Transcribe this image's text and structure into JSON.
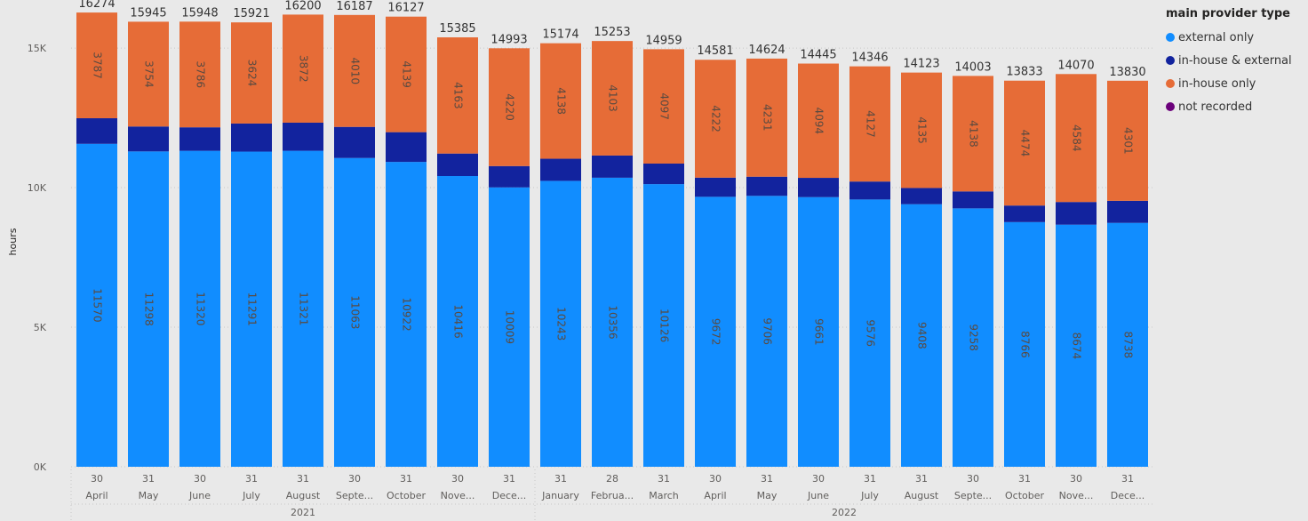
{
  "colors": {
    "background": "#e9e9e9",
    "external_only": "#118dff",
    "in_house_and_external": "#12239e",
    "in_house_only": "#e66c37",
    "not_recorded": "#6b007b",
    "gridline": "#c8c8c8",
    "axis_text": "#605e5c",
    "inner_label": "#5a4a40",
    "total_label": "#333333"
  },
  "legend": {
    "title": "main provider type",
    "items": [
      {
        "label": "external only",
        "color": "#118dff"
      },
      {
        "label": "in-house & external",
        "color": "#12239e"
      },
      {
        "label": "in-house only",
        "color": "#e66c37"
      },
      {
        "label": "not recorded",
        "color": "#6b007b"
      }
    ]
  },
  "chart_data": {
    "type": "bar",
    "stacked": true,
    "ylabel": "hours",
    "ylim": [
      0,
      16500
    ],
    "yticks": [
      0,
      5000,
      10000,
      15000
    ],
    "ytick_labels": [
      "0K",
      "5K",
      "10K",
      "15K"
    ],
    "grid": true,
    "legend_position": "right",
    "categories_day": [
      "30",
      "31",
      "30",
      "31",
      "31",
      "30",
      "31",
      "30",
      "31",
      "31",
      "28",
      "31",
      "30",
      "31",
      "30",
      "31",
      "31",
      "30",
      "31",
      "30",
      "31"
    ],
    "categories_month": [
      "April",
      "May",
      "June",
      "July",
      "August",
      "Septe...",
      "October",
      "Nove...",
      "Dece...",
      "January",
      "Februa...",
      "March",
      "April",
      "May",
      "June",
      "July",
      "August",
      "Septe...",
      "October",
      "Nove...",
      "Dece..."
    ],
    "years": [
      {
        "label": "2021",
        "start_index": 0,
        "end_index": 8
      },
      {
        "label": "2022",
        "start_index": 9,
        "end_index": 20
      }
    ],
    "totals": [
      16274,
      15945,
      15948,
      15921,
      16200,
      16187,
      16127,
      15385,
      14993,
      15174,
      15253,
      14959,
      14581,
      14624,
      14445,
      14346,
      14123,
      14003,
      13833,
      14070,
      13830
    ],
    "series": [
      {
        "name": "external only",
        "color": "#118dff",
        "values": [
          11570,
          11298,
          11320,
          11291,
          11321,
          11063,
          10922,
          10416,
          10009,
          10243,
          10356,
          10126,
          9672,
          9706,
          9661,
          9576,
          9408,
          9258,
          8766,
          8674,
          8738
        ]
      },
      {
        "name": "in-house & external",
        "color": "#12239e",
        "values": [
          917,
          893,
          842,
          1006,
          1007,
          1114,
          1066,
          806,
          764,
          793,
          794,
          736,
          687,
          687,
          690,
          643,
          580,
          607,
          593,
          812,
          791
        ]
      },
      {
        "name": "in-house only",
        "color": "#e66c37",
        "values": [
          3787,
          3754,
          3786,
          3624,
          3872,
          4010,
          4139,
          4163,
          4220,
          4138,
          4103,
          4097,
          4222,
          4231,
          4094,
          4127,
          4135,
          4138,
          4474,
          4584,
          4301
        ]
      },
      {
        "name": "not recorded",
        "color": "#6b007b",
        "values": [
          0,
          0,
          0,
          0,
          0,
          0,
          0,
          0,
          0,
          0,
          0,
          0,
          0,
          0,
          0,
          0,
          0,
          0,
          0,
          0,
          0
        ]
      }
    ],
    "segment_labels_shown": [
      "external only",
      "in-house only"
    ]
  }
}
